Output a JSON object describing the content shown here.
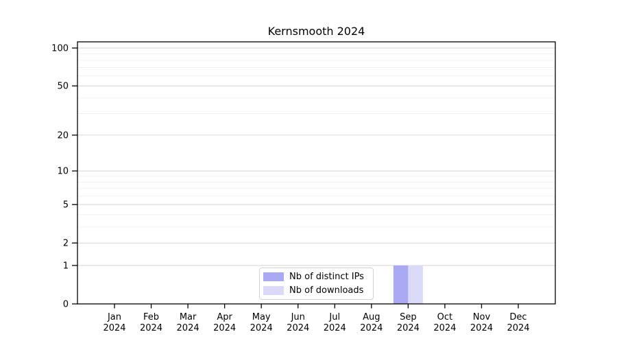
{
  "colors": {
    "background": "#ffffff",
    "axis": "#000000",
    "major_gridline": "#d6d6d6",
    "minor_gridline": "#f0f0f0",
    "legend_border": "#d2d2d2",
    "bar_distinct_ips": "#a9a9f4",
    "bar_downloads": "#dadaf8"
  },
  "chart_data": {
    "type": "bar",
    "title": "Kernsmooth 2024",
    "grid": "horizontal",
    "legend_position": "bottom-center",
    "x_axis": {
      "categories": [
        "Jan 2024",
        "Feb 2024",
        "Mar 2024",
        "Apr 2024",
        "May 2024",
        "Jun 2024",
        "Jul 2024",
        "Aug 2024",
        "Sep 2024",
        "Oct 2024",
        "Nov 2024",
        "Dec 2024"
      ]
    },
    "y_axis": {
      "scale": "log1p",
      "major_ticks": [
        0,
        1,
        2,
        5,
        10,
        20,
        50,
        100
      ],
      "minor_ticks": [
        3,
        4,
        6,
        7,
        8,
        9,
        30,
        40,
        60,
        70,
        80,
        90
      ],
      "range": [
        0,
        110
      ]
    },
    "series": [
      {
        "name": "Nb of distinct IPs",
        "color": "#a9a9f4",
        "values": [
          0,
          0,
          0,
          0,
          0,
          0,
          0,
          0,
          1,
          0,
          0,
          0
        ]
      },
      {
        "name": "Nb of downloads",
        "color": "#dadaf8",
        "values": [
          0,
          0,
          0,
          0,
          0,
          0,
          0,
          0,
          1,
          0,
          0,
          0
        ]
      }
    ]
  }
}
